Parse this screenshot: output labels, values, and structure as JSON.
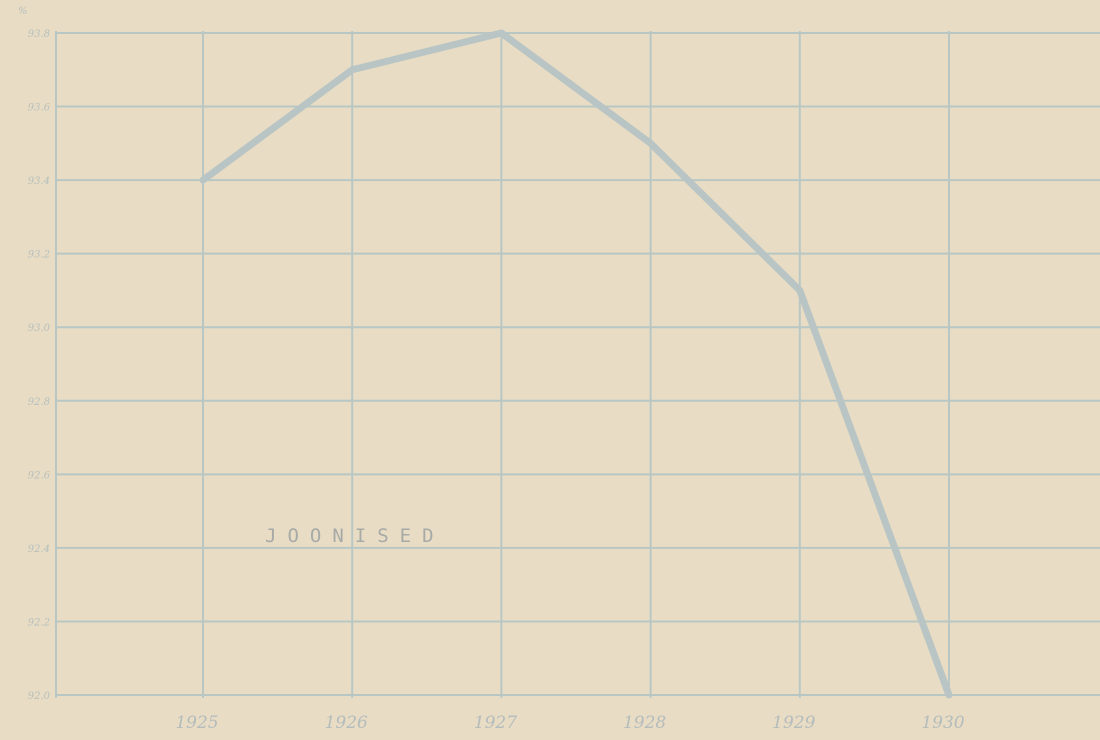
{
  "chart_data": {
    "type": "line",
    "unit": "%",
    "annotation": "JOONISED",
    "x": [
      "1925",
      "1926",
      "1927",
      "1928",
      "1929",
      "1930"
    ],
    "y_ticks": [
      "92.0",
      "92.2",
      "92.4",
      "92.6",
      "92.8",
      "93.0",
      "93.2",
      "93.4",
      "93.6",
      "93.8"
    ],
    "ylim": [
      92.0,
      93.8
    ],
    "series": [
      {
        "values": [
          93.4,
          93.7,
          93.8,
          93.5,
          93.1,
          92.0
        ]
      }
    ],
    "grid": true,
    "colors": {
      "background": "#e8dcc4",
      "grid": "#b9c7c4",
      "line": "#b9c5c4"
    }
  }
}
